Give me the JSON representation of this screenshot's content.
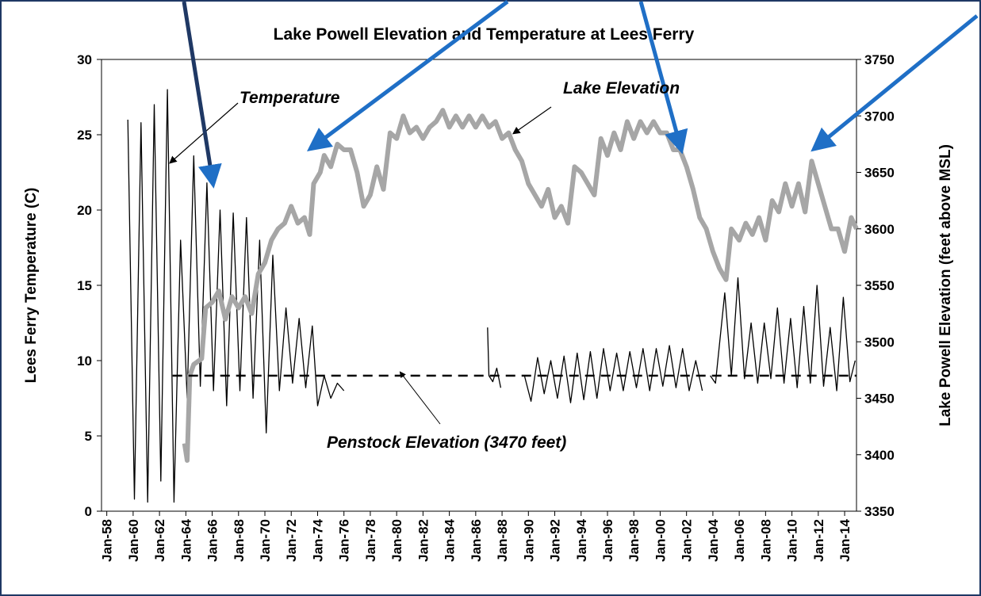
{
  "chart_data": {
    "type": "line",
    "title": "Lake Powell Elevation and Temperature at Lees Ferry",
    "y_label": "Lees Ferry Temperature (C)",
    "y2_label": "Lake Powell Elevation (feet above MSL)",
    "xlim": [
      1957.6,
      2014.9
    ],
    "xticks": [
      {
        "value": 1958,
        "label": "Jan-58"
      },
      {
        "value": 1960,
        "label": "Jan-60"
      },
      {
        "value": 1962,
        "label": "Jan-62"
      },
      {
        "value": 1964,
        "label": "Jan-64"
      },
      {
        "value": 1966,
        "label": "Jan-66"
      },
      {
        "value": 1968,
        "label": "Jan-68"
      },
      {
        "value": 1970,
        "label": "Jan-70"
      },
      {
        "value": 1972,
        "label": "Jan-72"
      },
      {
        "value": 1974,
        "label": "Jan-74"
      },
      {
        "value": 1976,
        "label": "Jan-76"
      },
      {
        "value": 1978,
        "label": "Jan-78"
      },
      {
        "value": 1980,
        "label": "Jan-80"
      },
      {
        "value": 1982,
        "label": "Jan-82"
      },
      {
        "value": 1984,
        "label": "Jan-84"
      },
      {
        "value": 1986,
        "label": "Jan-86"
      },
      {
        "value": 1988,
        "label": "Jan-88"
      },
      {
        "value": 1990,
        "label": "Jan-90"
      },
      {
        "value": 1992,
        "label": "Jan-92"
      },
      {
        "value": 1994,
        "label": "Jan-94"
      },
      {
        "value": 1996,
        "label": "Jan-96"
      },
      {
        "value": 1998,
        "label": "Jan-98"
      },
      {
        "value": 2000,
        "label": "Jan-00"
      },
      {
        "value": 2002,
        "label": "Jan-02"
      },
      {
        "value": 2004,
        "label": "Jan-04"
      },
      {
        "value": 2006,
        "label": "Jan-06"
      },
      {
        "value": 2008,
        "label": "Jan-08"
      },
      {
        "value": 2010,
        "label": "Jan-10"
      },
      {
        "value": 2012,
        "label": "Jan-12"
      },
      {
        "value": 2014,
        "label": "Jan-14"
      }
    ],
    "ylim": [
      0,
      30
    ],
    "yticks": [
      0,
      5,
      10,
      15,
      20,
      25,
      30
    ],
    "y2lim": [
      3350,
      3750
    ],
    "y2ticks": [
      3350,
      3400,
      3450,
      3500,
      3550,
      3600,
      3650,
      3700,
      3750
    ],
    "series": [
      {
        "name": "Temperature",
        "color": "#000000",
        "axis": "y",
        "x": [
          1959.6,
          1960.1,
          1960.6,
          1961.1,
          1961.6,
          1962.1,
          1962.6,
          1963.1,
          1963.6,
          1964.1,
          1964.6,
          1965.1,
          1965.6,
          1966.1,
          1966.6,
          1967.1,
          1967.6,
          1968.1,
          1968.6,
          1969.1,
          1969.6,
          1970.1,
          1970.6,
          1971.1,
          1971.6,
          1972.1,
          1972.6,
          1973.1,
          1973.6,
          1974.0,
          1974.5,
          1975.0,
          1975.5,
          1976.0,
          1980,
          1986.9,
          1987.0,
          1987.3,
          1987.6,
          1987.9,
          1988.5,
          1989.7,
          1990.2,
          1990.7,
          1991.2,
          1991.7,
          1992.2,
          1992.7,
          1993.2,
          1993.7,
          1994.2,
          1994.7,
          1995.2,
          1995.7,
          1996.2,
          1996.7,
          1997.2,
          1997.7,
          1998.2,
          1998.7,
          1999.2,
          1999.7,
          2000.2,
          2000.7,
          2001.2,
          2001.7,
          2002.2,
          2002.7,
          2003.2,
          2003.5,
          2003.8,
          2004.2,
          2004.9,
          2005.4,
          2005.9,
          2006.4,
          2006.9,
          2007.4,
          2007.9,
          2008.4,
          2008.9,
          2009.4,
          2009.9,
          2010.4,
          2010.9,
          2011.4,
          2011.9,
          2012.4,
          2012.9,
          2013.4,
          2013.9,
          2014.4,
          2014.8
        ],
        "values": [
          26,
          0.8,
          25.8,
          0.6,
          27,
          2,
          28,
          0.6,
          18,
          7.5,
          23.6,
          8.3,
          21.8,
          8,
          20,
          7,
          19.8,
          8,
          19.5,
          7.5,
          18,
          5.2,
          17,
          8,
          13.5,
          8.5,
          12.8,
          8.2,
          12.3,
          7,
          9,
          7.5,
          8.5,
          8,
          null,
          12.2,
          9,
          8.6,
          9.5,
          8.2,
          null,
          9,
          7.3,
          10.2,
          7.8,
          10,
          7.5,
          10.3,
          7.2,
          10.5,
          7.4,
          10.6,
          7.5,
          10.8,
          8,
          10.5,
          8,
          10.6,
          8.2,
          10.8,
          8,
          10.8,
          8.3,
          11,
          8.2,
          10.8,
          8,
          10,
          8,
          null,
          9,
          8.5,
          14.5,
          9,
          15.5,
          8.8,
          12.5,
          8.5,
          12.5,
          8.8,
          13.5,
          8.5,
          12.8,
          8.2,
          13.6,
          8.5,
          15,
          8.3,
          12.2,
          8,
          14.2,
          8.6,
          10
        ]
      },
      {
        "name": "Lake Elevation",
        "color": "#a6a6a6",
        "axis": "y2",
        "x": [
          1963.9,
          1964.1,
          1964.3,
          1964.6,
          1965.2,
          1965.5,
          1966,
          1966.5,
          1967,
          1967.5,
          1968,
          1968.5,
          1969,
          1969.5,
          1970,
          1970.5,
          1971,
          1971.5,
          1972,
          1972.5,
          1973,
          1973.4,
          1973.7,
          1974.2,
          1974.5,
          1975,
          1975.5,
          1976,
          1976.5,
          1977,
          1977.5,
          1978,
          1978.5,
          1979,
          1979.5,
          1980,
          1980.5,
          1981,
          1981.5,
          1982,
          1982.5,
          1983,
          1983.5,
          1984,
          1984.5,
          1985,
          1985.5,
          1986,
          1986.5,
          1987,
          1987.5,
          1988,
          1988.5,
          1989,
          1989.5,
          1990,
          1990.5,
          1991,
          1991.5,
          1992,
          1992.5,
          1993,
          1993.5,
          1994,
          1994.5,
          1995,
          1995.5,
          1996,
          1996.5,
          1997,
          1997.5,
          1998,
          1998.5,
          1999,
          1999.5,
          2000,
          2000.5,
          2001,
          2001.5,
          2002,
          2002.5,
          2003,
          2003.5,
          2004,
          2004.5,
          2005,
          2005.4,
          2006,
          2006.5,
          2007,
          2007.5,
          2008,
          2008.5,
          2009,
          2009.5,
          2010,
          2010.5,
          2011,
          2011.5,
          2012,
          2012.5,
          2013,
          2013.5,
          2014,
          2014.5,
          2014.9
        ],
        "values": [
          3410,
          3395,
          3470,
          3480,
          3485,
          3530,
          3535,
          3545,
          3520,
          3540,
          3530,
          3540,
          3525,
          3560,
          3570,
          3590,
          3600,
          3605,
          3620,
          3605,
          3610,
          3595,
          3640,
          3650,
          3665,
          3655,
          3675,
          3670,
          3670,
          3650,
          3620,
          3630,
          3655,
          3635,
          3685,
          3680,
          3700,
          3685,
          3690,
          3680,
          3690,
          3695,
          3705,
          3690,
          3700,
          3690,
          3700,
          3690,
          3700,
          3690,
          3695,
          3680,
          3685,
          3670,
          3660,
          3640,
          3630,
          3620,
          3635,
          3610,
          3620,
          3605,
          3655,
          3650,
          3640,
          3630,
          3680,
          3665,
          3685,
          3670,
          3695,
          3680,
          3695,
          3685,
          3695,
          3685,
          3685,
          3670,
          3670,
          3655,
          3635,
          3610,
          3600,
          3580,
          3565,
          3555,
          3600,
          3590,
          3605,
          3595,
          3610,
          3590,
          3625,
          3615,
          3640,
          3620,
          3640,
          3615,
          3660,
          3640,
          3620,
          3600,
          3600,
          3580,
          3610,
          3600
        ]
      }
    ],
    "reference_line": {
      "label": "Penstock Elevation (3470 feet)",
      "value": 3470,
      "axis": "y2",
      "x": [
        1963,
        2014.9
      ]
    }
  }
}
